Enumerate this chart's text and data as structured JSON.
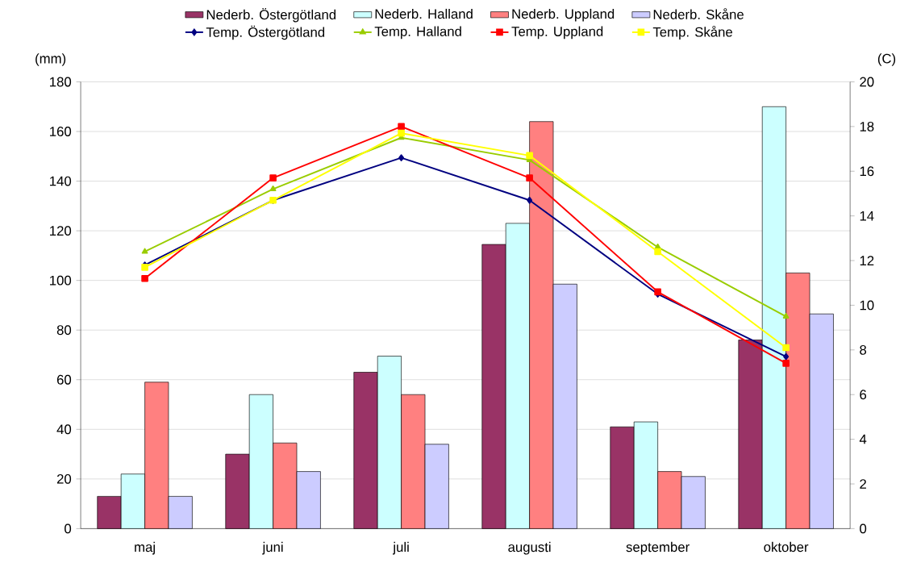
{
  "chart_data": {
    "type": "bar",
    "ylabel": "(mm)",
    "y2label": "(C)",
    "categories": [
      "maj",
      "juni",
      "juli",
      "augusti",
      "september",
      "oktober"
    ],
    "series": [
      {
        "name": "Nederb. Östergötland",
        "color": "#993366",
        "values": [
          13,
          30,
          63,
          114.5,
          41,
          76
        ]
      },
      {
        "name": "Nederb. Halland",
        "color": "#ccffff",
        "values": [
          22,
          54,
          69.5,
          123,
          43,
          170
        ]
      },
      {
        "name": "Nederb. Uppland",
        "color": "#ff8080",
        "values": [
          59,
          34.5,
          54,
          164,
          23,
          103
        ]
      },
      {
        "name": "Nederb. Skåne",
        "color": "#ccccff",
        "values": [
          13,
          23,
          34,
          98.5,
          21,
          86.5
        ]
      },
      {
        "name": "Temp. Östergötland",
        "type": "line",
        "axis": "y2",
        "marker": "diamond",
        "color": "#000080",
        "values": [
          11.8,
          14.7,
          16.6,
          14.7,
          10.5,
          7.7
        ]
      },
      {
        "name": "Temp. Halland",
        "type": "line",
        "axis": "y2",
        "marker": "triangle",
        "color": "#99cc00",
        "values": [
          12.4,
          15.2,
          17.5,
          16.5,
          12.6,
          9.5
        ]
      },
      {
        "name": "Temp. Uppland",
        "type": "line",
        "axis": "y2",
        "marker": "square",
        "color": "#ff0000",
        "values": [
          11.2,
          15.7,
          18.0,
          15.7,
          10.6,
          7.4
        ]
      },
      {
        "name": "Temp. Skåne",
        "type": "line",
        "axis": "y2",
        "marker": "square",
        "color": "#ffff00",
        "values": [
          11.7,
          14.7,
          17.7,
          16.7,
          12.4,
          8.1
        ]
      }
    ],
    "ylim": [
      0,
      180
    ],
    "yticks": [
      0,
      20,
      40,
      60,
      80,
      100,
      120,
      140,
      160,
      180
    ],
    "y2lim": [
      0,
      20
    ],
    "y2ticks": [
      0,
      2,
      4,
      6,
      8,
      10,
      12,
      14,
      16,
      18,
      20
    ],
    "grid": "y",
    "legend": "top"
  }
}
